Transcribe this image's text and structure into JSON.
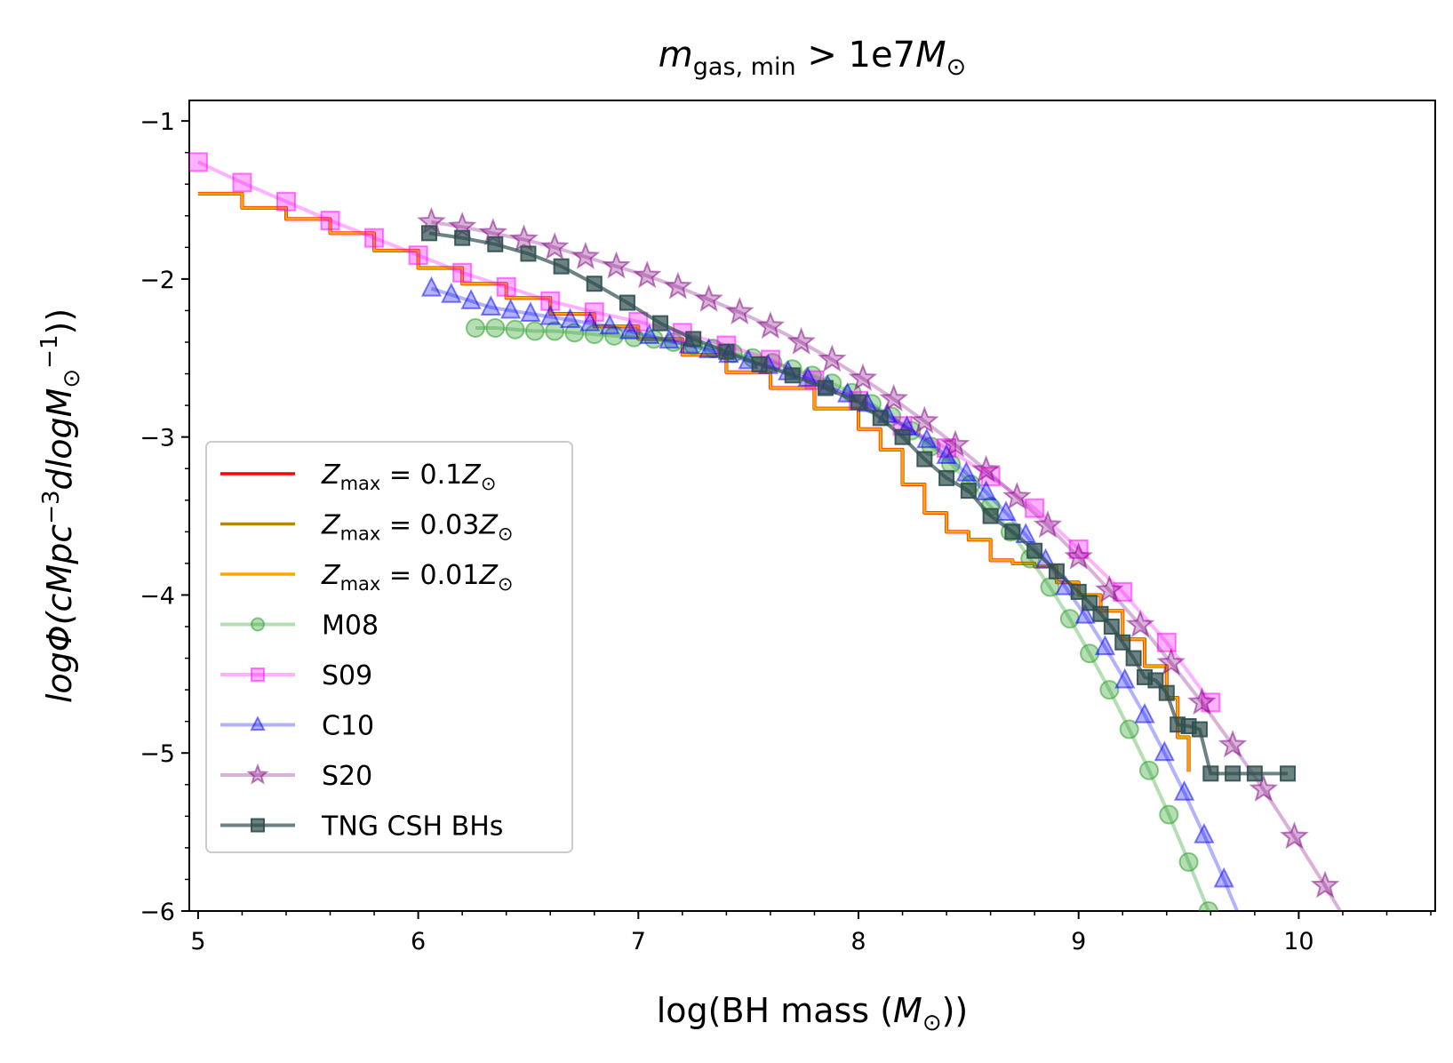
{
  "chart_data": {
    "type": "line",
    "title": {
      "main": "m",
      "sub": "gas, min",
      "rest": " > 1e7",
      "unit": "M",
      "unit_sub": "⊙"
    },
    "xlabel": {
      "pre": "log(BH mass (",
      "var": "M",
      "sub": "⊙",
      "post": "))"
    },
    "ylabel": {
      "main": "logΦ(cMpc",
      "sup1": "−3",
      "mid": "dlogM",
      "sub": "⊙",
      "sup2": "−1",
      "post": "))"
    },
    "xlim": [
      4.96,
      10.62
    ],
    "ylim": [
      -6,
      -0.87
    ],
    "xticks": [
      5,
      6,
      7,
      8,
      9,
      10
    ],
    "xtick_labels": [
      "5",
      "6",
      "7",
      "8",
      "9",
      "10"
    ],
    "yticks": [
      -1,
      -2,
      -3,
      -4,
      -5,
      -6
    ],
    "ytick_labels": [
      "−1",
      "−2",
      "−3",
      "−4",
      "−5",
      "−6"
    ],
    "legend_position": "lower-left",
    "series": [
      {
        "name": "Z_max = 0.1Z⊙",
        "label": {
          "var": "Z",
          "sub": "max",
          "rest": " = 0.1",
          "unit": "Z",
          "unit_sub": "⊙"
        },
        "color": "#ff0000",
        "style": "step-line",
        "x": [
          5.0,
          5.2,
          5.4,
          5.6,
          5.8,
          6.0,
          6.2,
          6.4,
          6.6,
          6.8,
          7.0,
          7.2,
          7.4,
          7.6,
          7.8,
          8.0,
          8.1,
          8.2,
          8.3,
          8.4,
          8.5,
          8.6,
          8.7,
          8.8,
          8.9,
          9.0,
          9.1,
          9.2,
          9.3,
          9.4,
          9.45,
          9.5
        ],
        "y": [
          -1.46,
          -1.55,
          -1.62,
          -1.71,
          -1.82,
          -1.93,
          -2.03,
          -2.12,
          -2.22,
          -2.3,
          -2.38,
          -2.48,
          -2.59,
          -2.69,
          -2.82,
          -2.95,
          -3.08,
          -3.3,
          -3.48,
          -3.6,
          -3.65,
          -3.78,
          -3.8,
          -3.82,
          -3.92,
          -4.0,
          -4.1,
          -4.28,
          -4.45,
          -4.65,
          -4.9,
          -5.12
        ]
      },
      {
        "name": "Z_max = 0.03Z⊙",
        "label": {
          "var": "Z",
          "sub": "max",
          "rest": " = 0.03",
          "unit": "Z",
          "unit_sub": "⊙"
        },
        "color": "#b8860b",
        "style": "step-line",
        "x": [
          5.0,
          5.2,
          5.4,
          5.6,
          5.8,
          6.0,
          6.2,
          6.4,
          6.6,
          6.8,
          7.0,
          7.2,
          7.4,
          7.6,
          7.8,
          8.0,
          8.1,
          8.2,
          8.3,
          8.4,
          8.5,
          8.6,
          8.7,
          8.8,
          8.9,
          9.0,
          9.1,
          9.2,
          9.3,
          9.4,
          9.45,
          9.5
        ],
        "y": [
          -1.46,
          -1.55,
          -1.62,
          -1.71,
          -1.82,
          -1.93,
          -2.03,
          -2.12,
          -2.22,
          -2.3,
          -2.38,
          -2.48,
          -2.59,
          -2.69,
          -2.82,
          -2.95,
          -3.08,
          -3.3,
          -3.48,
          -3.6,
          -3.65,
          -3.78,
          -3.8,
          -3.82,
          -3.92,
          -4.0,
          -4.1,
          -4.28,
          -4.45,
          -4.65,
          -4.9,
          -5.12
        ]
      },
      {
        "name": "Z_max = 0.01Z⊙",
        "label": {
          "var": "Z",
          "sub": "max",
          "rest": " = 0.01",
          "unit": "Z",
          "unit_sub": "⊙"
        },
        "color": "#ffa500",
        "style": "step-line",
        "x": [
          5.0,
          5.2,
          5.4,
          5.6,
          5.8,
          6.0,
          6.2,
          6.4,
          6.6,
          6.8,
          7.0,
          7.2,
          7.4,
          7.6,
          7.8,
          8.0,
          8.1,
          8.2,
          8.3,
          8.4,
          8.5,
          8.6,
          8.7,
          8.8,
          8.9,
          9.0,
          9.1,
          9.2,
          9.3,
          9.4,
          9.45,
          9.5
        ],
        "y": [
          -1.46,
          -1.55,
          -1.62,
          -1.71,
          -1.82,
          -1.93,
          -2.03,
          -2.12,
          -2.22,
          -2.3,
          -2.38,
          -2.48,
          -2.59,
          -2.69,
          -2.82,
          -2.95,
          -3.08,
          -3.3,
          -3.48,
          -3.6,
          -3.65,
          -3.78,
          -3.8,
          -3.82,
          -3.92,
          -4.0,
          -4.1,
          -4.28,
          -4.45,
          -4.65,
          -4.9,
          -5.12
        ]
      },
      {
        "name": "M08",
        "label": {
          "text": "M08"
        },
        "color": "#2ca02c",
        "marker": "circle",
        "alpha": 0.35,
        "x": [
          6.26,
          6.35,
          6.44,
          6.53,
          6.62,
          6.71,
          6.8,
          6.89,
          6.98,
          7.07,
          7.16,
          7.25,
          7.34,
          7.43,
          7.52,
          7.61,
          7.7,
          7.79,
          7.88,
          7.97,
          8.06,
          8.15,
          8.24,
          8.33,
          8.42,
          8.51,
          8.6,
          8.69,
          8.78,
          8.87,
          8.96,
          9.05,
          9.14,
          9.23,
          9.32,
          9.41,
          9.5,
          9.59,
          9.68
        ],
        "y": [
          -2.31,
          -2.31,
          -2.32,
          -2.33,
          -2.33,
          -2.34,
          -2.35,
          -2.36,
          -2.37,
          -2.38,
          -2.4,
          -2.42,
          -2.44,
          -2.47,
          -2.5,
          -2.53,
          -2.57,
          -2.61,
          -2.66,
          -2.72,
          -2.79,
          -2.87,
          -2.96,
          -3.06,
          -3.17,
          -3.3,
          -3.44,
          -3.6,
          -3.77,
          -3.95,
          -4.15,
          -4.37,
          -4.6,
          -4.85,
          -5.11,
          -5.39,
          -5.69,
          -6.0,
          -6.33
        ]
      },
      {
        "name": "S09",
        "label": {
          "text": "S09"
        },
        "color": "#ff00ff",
        "marker": "square",
        "alpha": 0.3,
        "x": [
          5.0,
          5.2,
          5.4,
          5.6,
          5.8,
          6.0,
          6.2,
          6.4,
          6.6,
          6.8,
          7.0,
          7.2,
          7.4,
          7.6,
          7.8,
          8.0,
          8.2,
          8.4,
          8.6,
          8.8,
          9.0,
          9.2,
          9.4,
          9.6
        ],
        "y": [
          -1.26,
          -1.39,
          -1.51,
          -1.63,
          -1.74,
          -1.85,
          -1.96,
          -2.05,
          -2.14,
          -2.21,
          -2.27,
          -2.34,
          -2.42,
          -2.51,
          -2.64,
          -2.77,
          -2.93,
          -3.07,
          -3.25,
          -3.45,
          -3.71,
          -3.98,
          -4.3,
          -4.68
        ]
      },
      {
        "name": "C10",
        "label": {
          "text": "C10"
        },
        "color": "#0000ff",
        "marker": "triangle",
        "alpha": 0.3,
        "x": [
          6.06,
          6.15,
          6.24,
          6.33,
          6.42,
          6.51,
          6.6,
          6.69,
          6.78,
          6.87,
          6.96,
          7.05,
          7.14,
          7.23,
          7.32,
          7.41,
          7.5,
          7.59,
          7.68,
          7.77,
          7.86,
          7.95,
          8.04,
          8.13,
          8.22,
          8.31,
          8.4,
          8.49,
          8.58,
          8.67,
          8.76,
          8.85,
          8.94,
          9.03,
          9.12,
          9.21,
          9.3,
          9.39,
          9.48,
          9.57,
          9.66,
          9.75
        ],
        "y": [
          -2.06,
          -2.1,
          -2.14,
          -2.18,
          -2.2,
          -2.22,
          -2.24,
          -2.26,
          -2.28,
          -2.3,
          -2.33,
          -2.36,
          -2.39,
          -2.42,
          -2.45,
          -2.48,
          -2.52,
          -2.55,
          -2.59,
          -2.63,
          -2.68,
          -2.73,
          -2.79,
          -2.86,
          -2.94,
          -3.02,
          -3.12,
          -3.23,
          -3.35,
          -3.48,
          -3.62,
          -3.78,
          -3.95,
          -4.13,
          -4.33,
          -4.54,
          -4.76,
          -5.0,
          -5.25,
          -5.52,
          -5.8,
          -6.1
        ]
      },
      {
        "name": "S20",
        "label": {
          "text": "S20"
        },
        "color": "#800080",
        "marker": "star",
        "alpha": 0.3,
        "x": [
          6.06,
          6.2,
          6.34,
          6.48,
          6.62,
          6.76,
          6.9,
          7.04,
          7.18,
          7.32,
          7.46,
          7.6,
          7.74,
          7.88,
          8.02,
          8.16,
          8.3,
          8.44,
          8.58,
          8.72,
          8.86,
          9.0,
          9.14,
          9.28,
          9.42,
          9.56,
          9.7,
          9.84,
          9.98,
          10.12,
          10.26
        ],
        "y": [
          -1.64,
          -1.67,
          -1.71,
          -1.75,
          -1.8,
          -1.86,
          -1.92,
          -1.98,
          -2.05,
          -2.13,
          -2.21,
          -2.3,
          -2.4,
          -2.51,
          -2.63,
          -2.76,
          -2.9,
          -3.05,
          -3.21,
          -3.38,
          -3.56,
          -3.76,
          -3.97,
          -4.19,
          -4.43,
          -4.68,
          -4.95,
          -5.23,
          -5.53,
          -5.84,
          -6.17
        ]
      },
      {
        "name": "TNG CSH BHs",
        "label": {
          "text": "TNG CSH BHs"
        },
        "color": "#2f4f4f",
        "marker": "square-small",
        "alpha": 0.7,
        "style": "thick",
        "x": [
          6.05,
          6.2,
          6.35,
          6.5,
          6.65,
          6.8,
          6.95,
          7.1,
          7.25,
          7.4,
          7.55,
          7.7,
          7.85,
          8.0,
          8.1,
          8.2,
          8.3,
          8.4,
          8.5,
          8.6,
          8.7,
          8.8,
          8.9,
          9.0,
          9.05,
          9.1,
          9.15,
          9.2,
          9.25,
          9.3,
          9.35,
          9.4,
          9.45,
          9.5,
          9.55,
          9.6,
          9.7,
          9.8,
          9.95
        ],
        "y": [
          -1.71,
          -1.74,
          -1.78,
          -1.84,
          -1.92,
          -2.03,
          -2.15,
          -2.28,
          -2.38,
          -2.46,
          -2.54,
          -2.61,
          -2.69,
          -2.78,
          -2.88,
          -3.0,
          -3.14,
          -3.26,
          -3.34,
          -3.5,
          -3.6,
          -3.72,
          -3.85,
          -3.98,
          -4.05,
          -4.12,
          -4.2,
          -4.3,
          -4.4,
          -4.52,
          -4.54,
          -4.62,
          -4.82,
          -4.83,
          -4.85,
          -5.13,
          -5.13,
          -5.13,
          -5.13
        ]
      }
    ]
  }
}
